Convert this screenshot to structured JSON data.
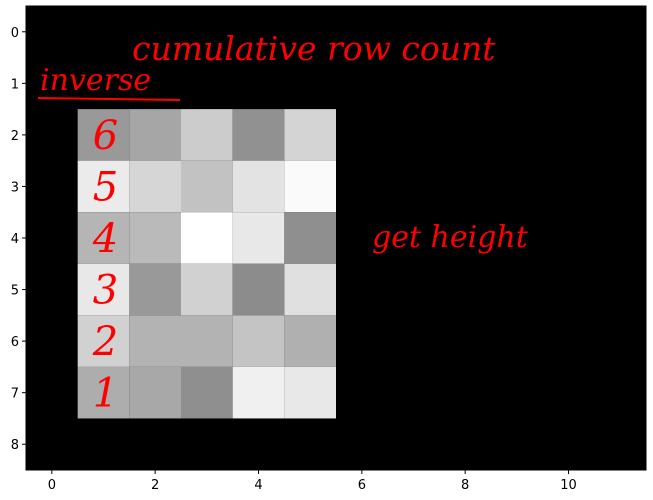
{
  "chart_data": {
    "type": "heatmap",
    "title": "",
    "xlabel": "",
    "ylabel": "",
    "xlim": [
      -0.5,
      11.5
    ],
    "ylim": [
      8.5,
      -0.5
    ],
    "y_inverted": true,
    "x_ticks": [
      "0",
      "2",
      "4",
      "6",
      "8",
      "10"
    ],
    "y_ticks": [
      "0",
      "1",
      "2",
      "3",
      "4",
      "5",
      "6",
      "7",
      "8"
    ],
    "background_color": "#000000",
    "grid": false,
    "colormap": "gray",
    "cells": [
      {
        "row": 2,
        "col": 1,
        "gray": 0.6
      },
      {
        "row": 2,
        "col": 2,
        "gray": 0.65
      },
      {
        "row": 2,
        "col": 3,
        "gray": 0.8
      },
      {
        "row": 2,
        "col": 4,
        "gray": 0.57
      },
      {
        "row": 2,
        "col": 5,
        "gray": 0.83
      },
      {
        "row": 3,
        "col": 1,
        "gray": 0.92
      },
      {
        "row": 3,
        "col": 2,
        "gray": 0.84
      },
      {
        "row": 3,
        "col": 3,
        "gray": 0.76
      },
      {
        "row": 3,
        "col": 4,
        "gray": 0.89
      },
      {
        "row": 3,
        "col": 5,
        "gray": 0.98
      },
      {
        "row": 4,
        "col": 1,
        "gray": 0.71
      },
      {
        "row": 4,
        "col": 2,
        "gray": 0.73
      },
      {
        "row": 4,
        "col": 3,
        "gray": 1.0
      },
      {
        "row": 4,
        "col": 4,
        "gray": 0.91
      },
      {
        "row": 4,
        "col": 5,
        "gray": 0.56
      },
      {
        "row": 5,
        "col": 1,
        "gray": 0.91
      },
      {
        "row": 5,
        "col": 2,
        "gray": 0.6
      },
      {
        "row": 5,
        "col": 3,
        "gray": 0.82
      },
      {
        "row": 5,
        "col": 4,
        "gray": 0.55
      },
      {
        "row": 5,
        "col": 5,
        "gray": 0.88
      },
      {
        "row": 6,
        "col": 1,
        "gray": 0.82
      },
      {
        "row": 6,
        "col": 2,
        "gray": 0.7
      },
      {
        "row": 6,
        "col": 3,
        "gray": 0.7
      },
      {
        "row": 6,
        "col": 4,
        "gray": 0.77
      },
      {
        "row": 6,
        "col": 5,
        "gray": 0.69
      },
      {
        "row": 7,
        "col": 1,
        "gray": 0.68
      },
      {
        "row": 7,
        "col": 2,
        "gray": 0.66
      },
      {
        "row": 7,
        "col": 3,
        "gray": 0.56
      },
      {
        "row": 7,
        "col": 4,
        "gray": 0.94
      },
      {
        "row": 7,
        "col": 5,
        "gray": 0.91
      }
    ],
    "annotations": {
      "color": "#ff0000",
      "cumulative": "cumulative row count",
      "inverse": "inverse",
      "get_height": "get height",
      "row_numbers": [
        {
          "row": 2,
          "text": "6"
        },
        {
          "row": 3,
          "text": "5"
        },
        {
          "row": 4,
          "text": "4"
        },
        {
          "row": 5,
          "text": "3"
        },
        {
          "row": 6,
          "text": "2"
        },
        {
          "row": 7,
          "text": "1"
        }
      ]
    }
  }
}
